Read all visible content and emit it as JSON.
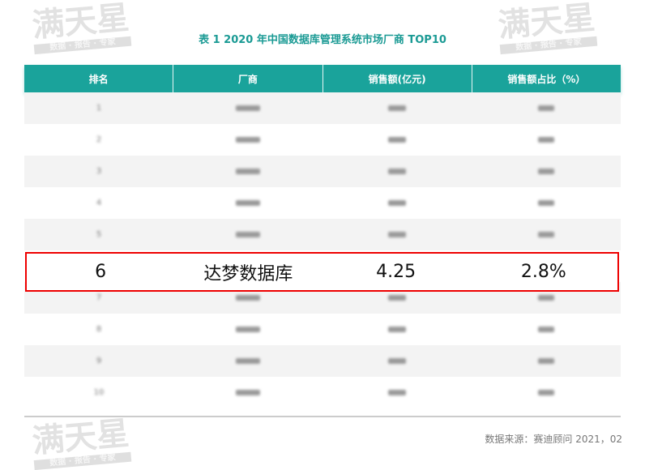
{
  "title": "表 1   2020 年中国数据库管理系统市场厂商 TOP10",
  "headers": [
    "排名",
    "厂商",
    "销售额(亿元)",
    "销售额占比（%）"
  ],
  "blurred_rows": [
    {
      "rank": "1"
    },
    {
      "rank": "2"
    },
    {
      "rank": "3"
    },
    {
      "rank": "4"
    },
    {
      "rank": "5"
    },
    {
      "rank": "7"
    },
    {
      "rank": "8"
    },
    {
      "rank": "9"
    },
    {
      "rank": "10"
    }
  ],
  "highlight_row": {
    "rank": "6",
    "vendor": "达梦数据库",
    "sales": "4.25",
    "share": "2.8%"
  },
  "highlight_color": "#e00000",
  "header_color": "#1aa39b",
  "source": "数据来源：赛迪顾问   2021，02",
  "watermark": {
    "main": "满天星",
    "sub": "数据 · 报告 · 专家"
  }
}
